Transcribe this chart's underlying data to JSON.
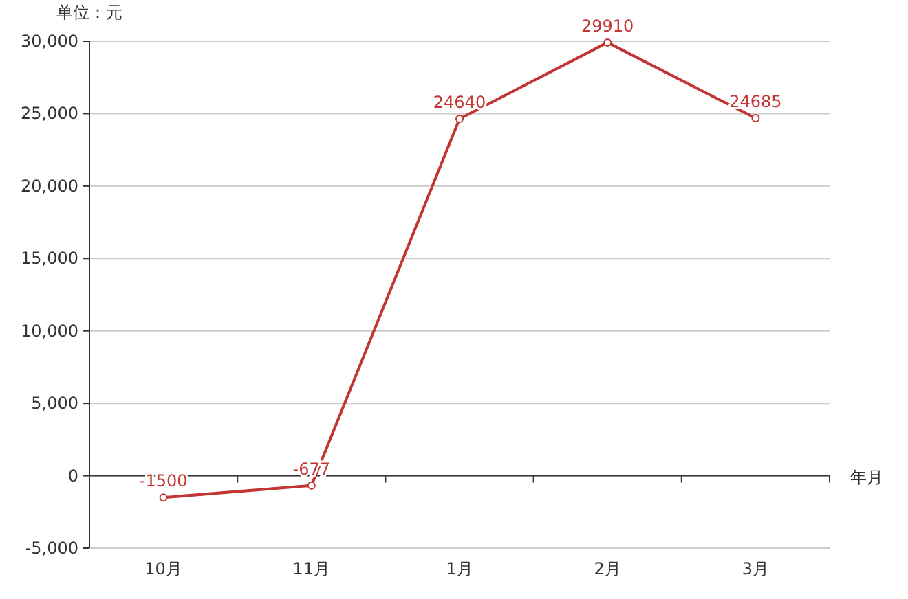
{
  "chart_data": {
    "type": "line",
    "ylabel": "单位：元",
    "xlabel": "年月",
    "categories": [
      "10月",
      "11月",
      "1月",
      "2月",
      "3月"
    ],
    "series": [
      {
        "color": "#c23531",
        "values": [
          -1500,
          -677,
          24640,
          29910,
          24685
        ]
      }
    ],
    "ylim": [
      -5000,
      30000
    ],
    "yticks": [
      {
        "value": -5000,
        "label": "-5,000"
      },
      {
        "value": 0,
        "label": "0"
      },
      {
        "value": 5000,
        "label": "5,000"
      },
      {
        "value": 10000,
        "label": "10,000"
      },
      {
        "value": 15000,
        "label": "15,000"
      },
      {
        "value": 20000,
        "label": "20,000"
      },
      {
        "value": 25000,
        "label": "25,000"
      },
      {
        "value": 30000,
        "label": "30,000"
      }
    ],
    "grid": "y",
    "marker": "circle",
    "line_style": "solid",
    "data_labels": true
  }
}
